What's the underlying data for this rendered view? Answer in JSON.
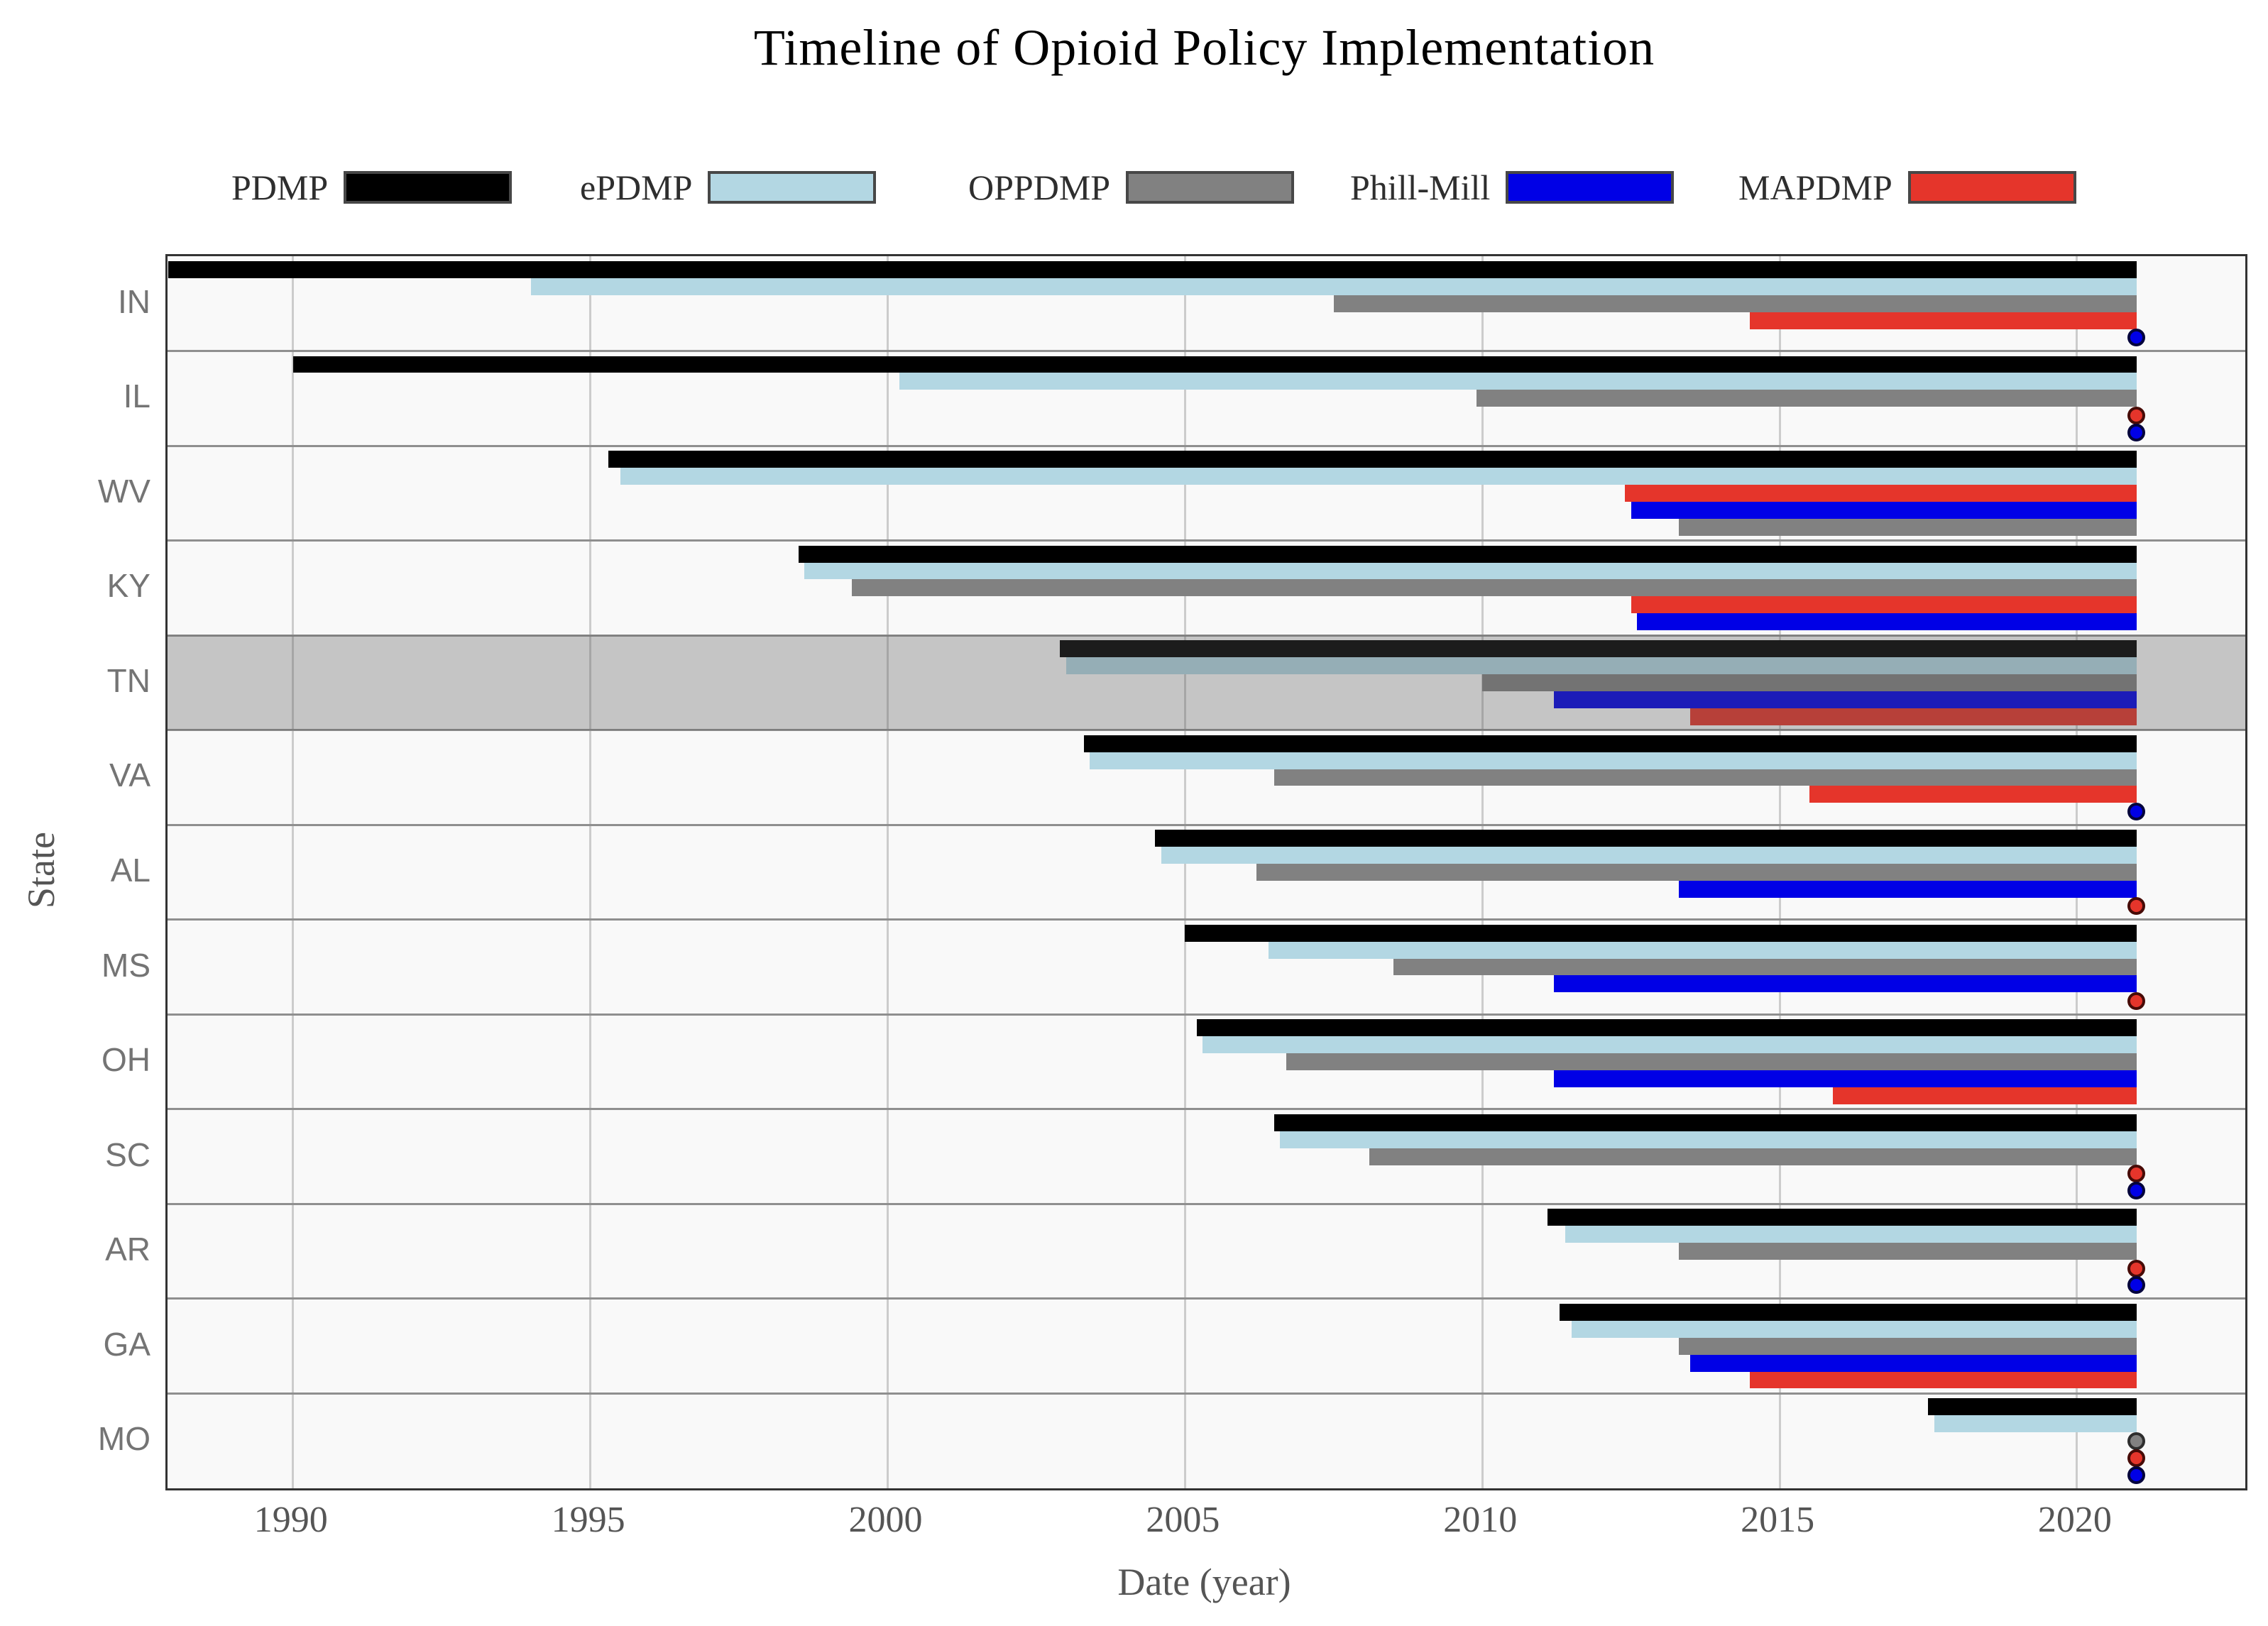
{
  "chart_data": {
    "type": "gantt",
    "title": "Timeline of Opioid Policy Implementation",
    "xlabel": "Date (year)",
    "ylabel": "State",
    "x_range": [
      1987.89,
      2022.83
    ],
    "x_ticks": [
      "1990",
      "1995",
      "2000",
      "2005",
      "2010",
      "2015",
      "2020"
    ],
    "bar_end_year": 2021,
    "grid": "vertical-major-only",
    "legend_position": "top",
    "highlighted_row": "TN",
    "policies": [
      {
        "name": "PDMP",
        "color": "#000000",
        "dot_border": "#1c1c1c"
      },
      {
        "name": "ePDMP",
        "color": "#b3d7e3",
        "dot_border": "#5d8fa3"
      },
      {
        "name": "OPPDMP",
        "color": "#818181",
        "dot_border": "#2e2e2e"
      },
      {
        "name": "Phill-Mill",
        "color": "#0000e6",
        "dot_border": "#04043c"
      },
      {
        "name": "MAPDMP",
        "color": "#e5352b",
        "dot_border": "#470b07"
      }
    ],
    "rows": [
      {
        "state": "IN",
        "highlight": false,
        "segments": [
          {
            "policy": "PDMP",
            "start": 1987.9,
            "end": 2021,
            "style": "bar"
          },
          {
            "policy": "ePDMP",
            "start": 1994.0,
            "end": 2021,
            "style": "bar"
          },
          {
            "policy": "OPPDMP",
            "start": 2007.5,
            "end": 2021,
            "style": "bar"
          },
          {
            "policy": "MAPDMP",
            "start": 2014.5,
            "end": 2021,
            "style": "bar"
          },
          {
            "policy": "Phill-Mill",
            "start": 2021,
            "end": 2021,
            "style": "dot"
          }
        ]
      },
      {
        "state": "IL",
        "highlight": false,
        "segments": [
          {
            "policy": "PDMP",
            "start": 1990.0,
            "end": 2021,
            "style": "bar"
          },
          {
            "policy": "ePDMP",
            "start": 2000.2,
            "end": 2021,
            "style": "bar"
          },
          {
            "policy": "OPPDMP",
            "start": 2009.9,
            "end": 2021,
            "style": "bar"
          },
          {
            "policy": "MAPDMP",
            "start": 2021,
            "end": 2021,
            "style": "dot"
          },
          {
            "policy": "Phill-Mill",
            "start": 2021,
            "end": 2021,
            "style": "dot"
          }
        ]
      },
      {
        "state": "WV",
        "highlight": false,
        "segments": [
          {
            "policy": "PDMP",
            "start": 1995.3,
            "end": 2021,
            "style": "bar"
          },
          {
            "policy": "ePDMP",
            "start": 1995.5,
            "end": 2021,
            "style": "bar"
          },
          {
            "policy": "MAPDMP",
            "start": 2012.4,
            "end": 2021,
            "style": "bar"
          },
          {
            "policy": "Phill-Mill",
            "start": 2012.5,
            "end": 2021,
            "style": "bar"
          },
          {
            "policy": "OPPDMP",
            "start": 2013.3,
            "end": 2021,
            "style": "bar"
          }
        ]
      },
      {
        "state": "KY",
        "highlight": false,
        "segments": [
          {
            "policy": "PDMP",
            "start": 1998.5,
            "end": 2021,
            "style": "bar"
          },
          {
            "policy": "ePDMP",
            "start": 1998.6,
            "end": 2021,
            "style": "bar"
          },
          {
            "policy": "OPPDMP",
            "start": 1999.4,
            "end": 2021,
            "style": "bar"
          },
          {
            "policy": "MAPDMP",
            "start": 2012.5,
            "end": 2021,
            "style": "bar"
          },
          {
            "policy": "Phill-Mill",
            "start": 2012.6,
            "end": 2021,
            "style": "bar"
          }
        ]
      },
      {
        "state": "TN",
        "highlight": true,
        "segments": [
          {
            "policy": "PDMP",
            "start": 2002.9,
            "end": 2021,
            "style": "bar"
          },
          {
            "policy": "ePDMP",
            "start": 2003.0,
            "end": 2021,
            "style": "bar"
          },
          {
            "policy": "OPPDMP",
            "start": 2010.0,
            "end": 2021,
            "style": "bar"
          },
          {
            "policy": "Phill-Mill",
            "start": 2011.2,
            "end": 2021,
            "style": "bar"
          },
          {
            "policy": "MAPDMP",
            "start": 2013.5,
            "end": 2021,
            "style": "bar"
          }
        ]
      },
      {
        "state": "VA",
        "highlight": false,
        "segments": [
          {
            "policy": "PDMP",
            "start": 2003.3,
            "end": 2021,
            "style": "bar"
          },
          {
            "policy": "ePDMP",
            "start": 2003.4,
            "end": 2021,
            "style": "bar"
          },
          {
            "policy": "OPPDMP",
            "start": 2006.5,
            "end": 2021,
            "style": "bar"
          },
          {
            "policy": "MAPDMP",
            "start": 2015.5,
            "end": 2021,
            "style": "bar"
          },
          {
            "policy": "Phill-Mill",
            "start": 2021,
            "end": 2021,
            "style": "dot"
          }
        ]
      },
      {
        "state": "AL",
        "highlight": false,
        "segments": [
          {
            "policy": "PDMP",
            "start": 2004.5,
            "end": 2021,
            "style": "bar"
          },
          {
            "policy": "ePDMP",
            "start": 2004.6,
            "end": 2021,
            "style": "bar"
          },
          {
            "policy": "OPPDMP",
            "start": 2006.2,
            "end": 2021,
            "style": "bar"
          },
          {
            "policy": "Phill-Mill",
            "start": 2013.3,
            "end": 2021,
            "style": "bar"
          },
          {
            "policy": "MAPDMP",
            "start": 2021,
            "end": 2021,
            "style": "dot"
          }
        ]
      },
      {
        "state": "MS",
        "highlight": false,
        "segments": [
          {
            "policy": "PDMP",
            "start": 2005.0,
            "end": 2021,
            "style": "bar"
          },
          {
            "policy": "ePDMP",
            "start": 2006.4,
            "end": 2021,
            "style": "bar"
          },
          {
            "policy": "OPPDMP",
            "start": 2008.5,
            "end": 2021,
            "style": "bar"
          },
          {
            "policy": "Phill-Mill",
            "start": 2011.2,
            "end": 2021,
            "style": "bar"
          },
          {
            "policy": "MAPDMP",
            "start": 2021,
            "end": 2021,
            "style": "dot"
          }
        ]
      },
      {
        "state": "OH",
        "highlight": false,
        "segments": [
          {
            "policy": "PDMP",
            "start": 2005.2,
            "end": 2021,
            "style": "bar"
          },
          {
            "policy": "ePDMP",
            "start": 2005.3,
            "end": 2021,
            "style": "bar"
          },
          {
            "policy": "OPPDMP",
            "start": 2006.7,
            "end": 2021,
            "style": "bar"
          },
          {
            "policy": "Phill-Mill",
            "start": 2011.2,
            "end": 2021,
            "style": "bar"
          },
          {
            "policy": "MAPDMP",
            "start": 2015.9,
            "end": 2021,
            "style": "bar"
          }
        ]
      },
      {
        "state": "SC",
        "highlight": false,
        "segments": [
          {
            "policy": "PDMP",
            "start": 2006.5,
            "end": 2021,
            "style": "bar"
          },
          {
            "policy": "ePDMP",
            "start": 2006.6,
            "end": 2021,
            "style": "bar"
          },
          {
            "policy": "OPPDMP",
            "start": 2008.1,
            "end": 2021,
            "style": "bar"
          },
          {
            "policy": "MAPDMP",
            "start": 2021,
            "end": 2021,
            "style": "dot"
          },
          {
            "policy": "Phill-Mill",
            "start": 2021,
            "end": 2021,
            "style": "dot"
          }
        ]
      },
      {
        "state": "AR",
        "highlight": false,
        "segments": [
          {
            "policy": "PDMP",
            "start": 2011.1,
            "end": 2021,
            "style": "bar"
          },
          {
            "policy": "ePDMP",
            "start": 2011.4,
            "end": 2021,
            "style": "bar"
          },
          {
            "policy": "OPPDMP",
            "start": 2013.3,
            "end": 2021,
            "style": "bar"
          },
          {
            "policy": "MAPDMP",
            "start": 2021,
            "end": 2021,
            "style": "dot"
          },
          {
            "policy": "Phill-Mill",
            "start": 2021,
            "end": 2021,
            "style": "dot"
          }
        ]
      },
      {
        "state": "GA",
        "highlight": false,
        "segments": [
          {
            "policy": "PDMP",
            "start": 2011.3,
            "end": 2021,
            "style": "bar"
          },
          {
            "policy": "ePDMP",
            "start": 2011.5,
            "end": 2021,
            "style": "bar"
          },
          {
            "policy": "OPPDMP",
            "start": 2013.3,
            "end": 2021,
            "style": "bar"
          },
          {
            "policy": "Phill-Mill",
            "start": 2013.5,
            "end": 2021,
            "style": "bar"
          },
          {
            "policy": "MAPDMP",
            "start": 2014.5,
            "end": 2021,
            "style": "bar"
          }
        ]
      },
      {
        "state": "MO",
        "highlight": false,
        "segments": [
          {
            "policy": "PDMP",
            "start": 2017.5,
            "end": 2021,
            "style": "bar"
          },
          {
            "policy": "ePDMP",
            "start": 2017.6,
            "end": 2021,
            "style": "bar"
          },
          {
            "policy": "OPPDMP",
            "start": 2021,
            "end": 2021,
            "style": "dot"
          },
          {
            "policy": "MAPDMP",
            "start": 2021,
            "end": 2021,
            "style": "dot"
          },
          {
            "policy": "Phill-Mill",
            "start": 2021,
            "end": 2021,
            "style": "dot"
          }
        ]
      }
    ]
  }
}
